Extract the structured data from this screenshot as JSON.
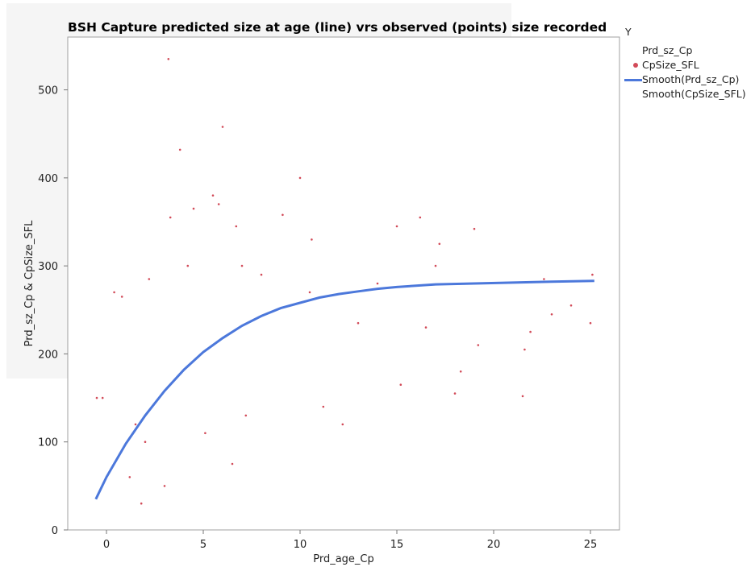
{
  "chart_data": {
    "type": "scatter",
    "title": "BSH Capture predicted size at age (line) vrs observed (points) size recorded",
    "xlabel": "Prd_age_Cp",
    "ylabel": "Prd_sz_Cp & CpSize_SFL",
    "xlim": [
      -2,
      26.5
    ],
    "ylim": [
      0,
      560
    ],
    "x_ticks": [
      0,
      5,
      10,
      15,
      20,
      25
    ],
    "y_ticks": [
      0,
      100,
      200,
      300,
      400,
      500
    ],
    "legend_title": "Y",
    "legend_position": "right",
    "series": [
      {
        "name": "Prd_sz_Cp",
        "kind": "none",
        "color": "none"
      },
      {
        "name": "CpSize_SFL",
        "kind": "scatter",
        "color": "#d24b59",
        "points": [
          [
            -0.5,
            150
          ],
          [
            -0.2,
            150
          ],
          [
            0.4,
            270
          ],
          [
            0.8,
            265
          ],
          [
            1.2,
            60
          ],
          [
            1.5,
            120
          ],
          [
            1.8,
            30
          ],
          [
            2.0,
            100
          ],
          [
            2.2,
            285
          ],
          [
            3.0,
            50
          ],
          [
            3.2,
            535
          ],
          [
            3.3,
            355
          ],
          [
            3.8,
            432
          ],
          [
            4.2,
            300
          ],
          [
            4.5,
            365
          ],
          [
            5.1,
            110
          ],
          [
            5.5,
            380
          ],
          [
            5.8,
            370
          ],
          [
            6.0,
            458
          ],
          [
            6.5,
            75
          ],
          [
            6.7,
            345
          ],
          [
            7.0,
            300
          ],
          [
            7.2,
            130
          ],
          [
            8.0,
            290
          ],
          [
            9.1,
            358
          ],
          [
            10.0,
            400
          ],
          [
            10.5,
            270
          ],
          [
            10.6,
            330
          ],
          [
            11.2,
            140
          ],
          [
            12.2,
            120
          ],
          [
            13.0,
            235
          ],
          [
            14.0,
            280
          ],
          [
            15.0,
            345
          ],
          [
            15.2,
            165
          ],
          [
            16.2,
            355
          ],
          [
            16.5,
            230
          ],
          [
            17.0,
            300
          ],
          [
            17.2,
            325
          ],
          [
            18.0,
            155
          ],
          [
            18.3,
            180
          ],
          [
            19.0,
            342
          ],
          [
            19.2,
            210
          ],
          [
            21.5,
            152
          ],
          [
            21.6,
            205
          ],
          [
            21.9,
            225
          ],
          [
            22.6,
            285
          ],
          [
            23.0,
            245
          ],
          [
            24.0,
            255
          ],
          [
            25.0,
            235
          ],
          [
            25.1,
            290
          ]
        ]
      },
      {
        "name": "Smooth(Prd_sz_Cp)",
        "kind": "line",
        "color": "#4c78db"
      },
      {
        "name": "Smooth(CpSize_SFL)",
        "kind": "none",
        "color": "none"
      }
    ],
    "smooth_curve": [
      [
        -0.55,
        35
      ],
      [
        0,
        60
      ],
      [
        1,
        98
      ],
      [
        2,
        130
      ],
      [
        3,
        158
      ],
      [
        4,
        182
      ],
      [
        5,
        202
      ],
      [
        6,
        218
      ],
      [
        7,
        232
      ],
      [
        8,
        243
      ],
      [
        9,
        252
      ],
      [
        10,
        258
      ],
      [
        11,
        264
      ],
      [
        12,
        268
      ],
      [
        13,
        271
      ],
      [
        14,
        274
      ],
      [
        15,
        276
      ],
      [
        17,
        279
      ],
      [
        19,
        280
      ],
      [
        21,
        281
      ],
      [
        23,
        282
      ],
      [
        25.2,
        283
      ]
    ]
  }
}
